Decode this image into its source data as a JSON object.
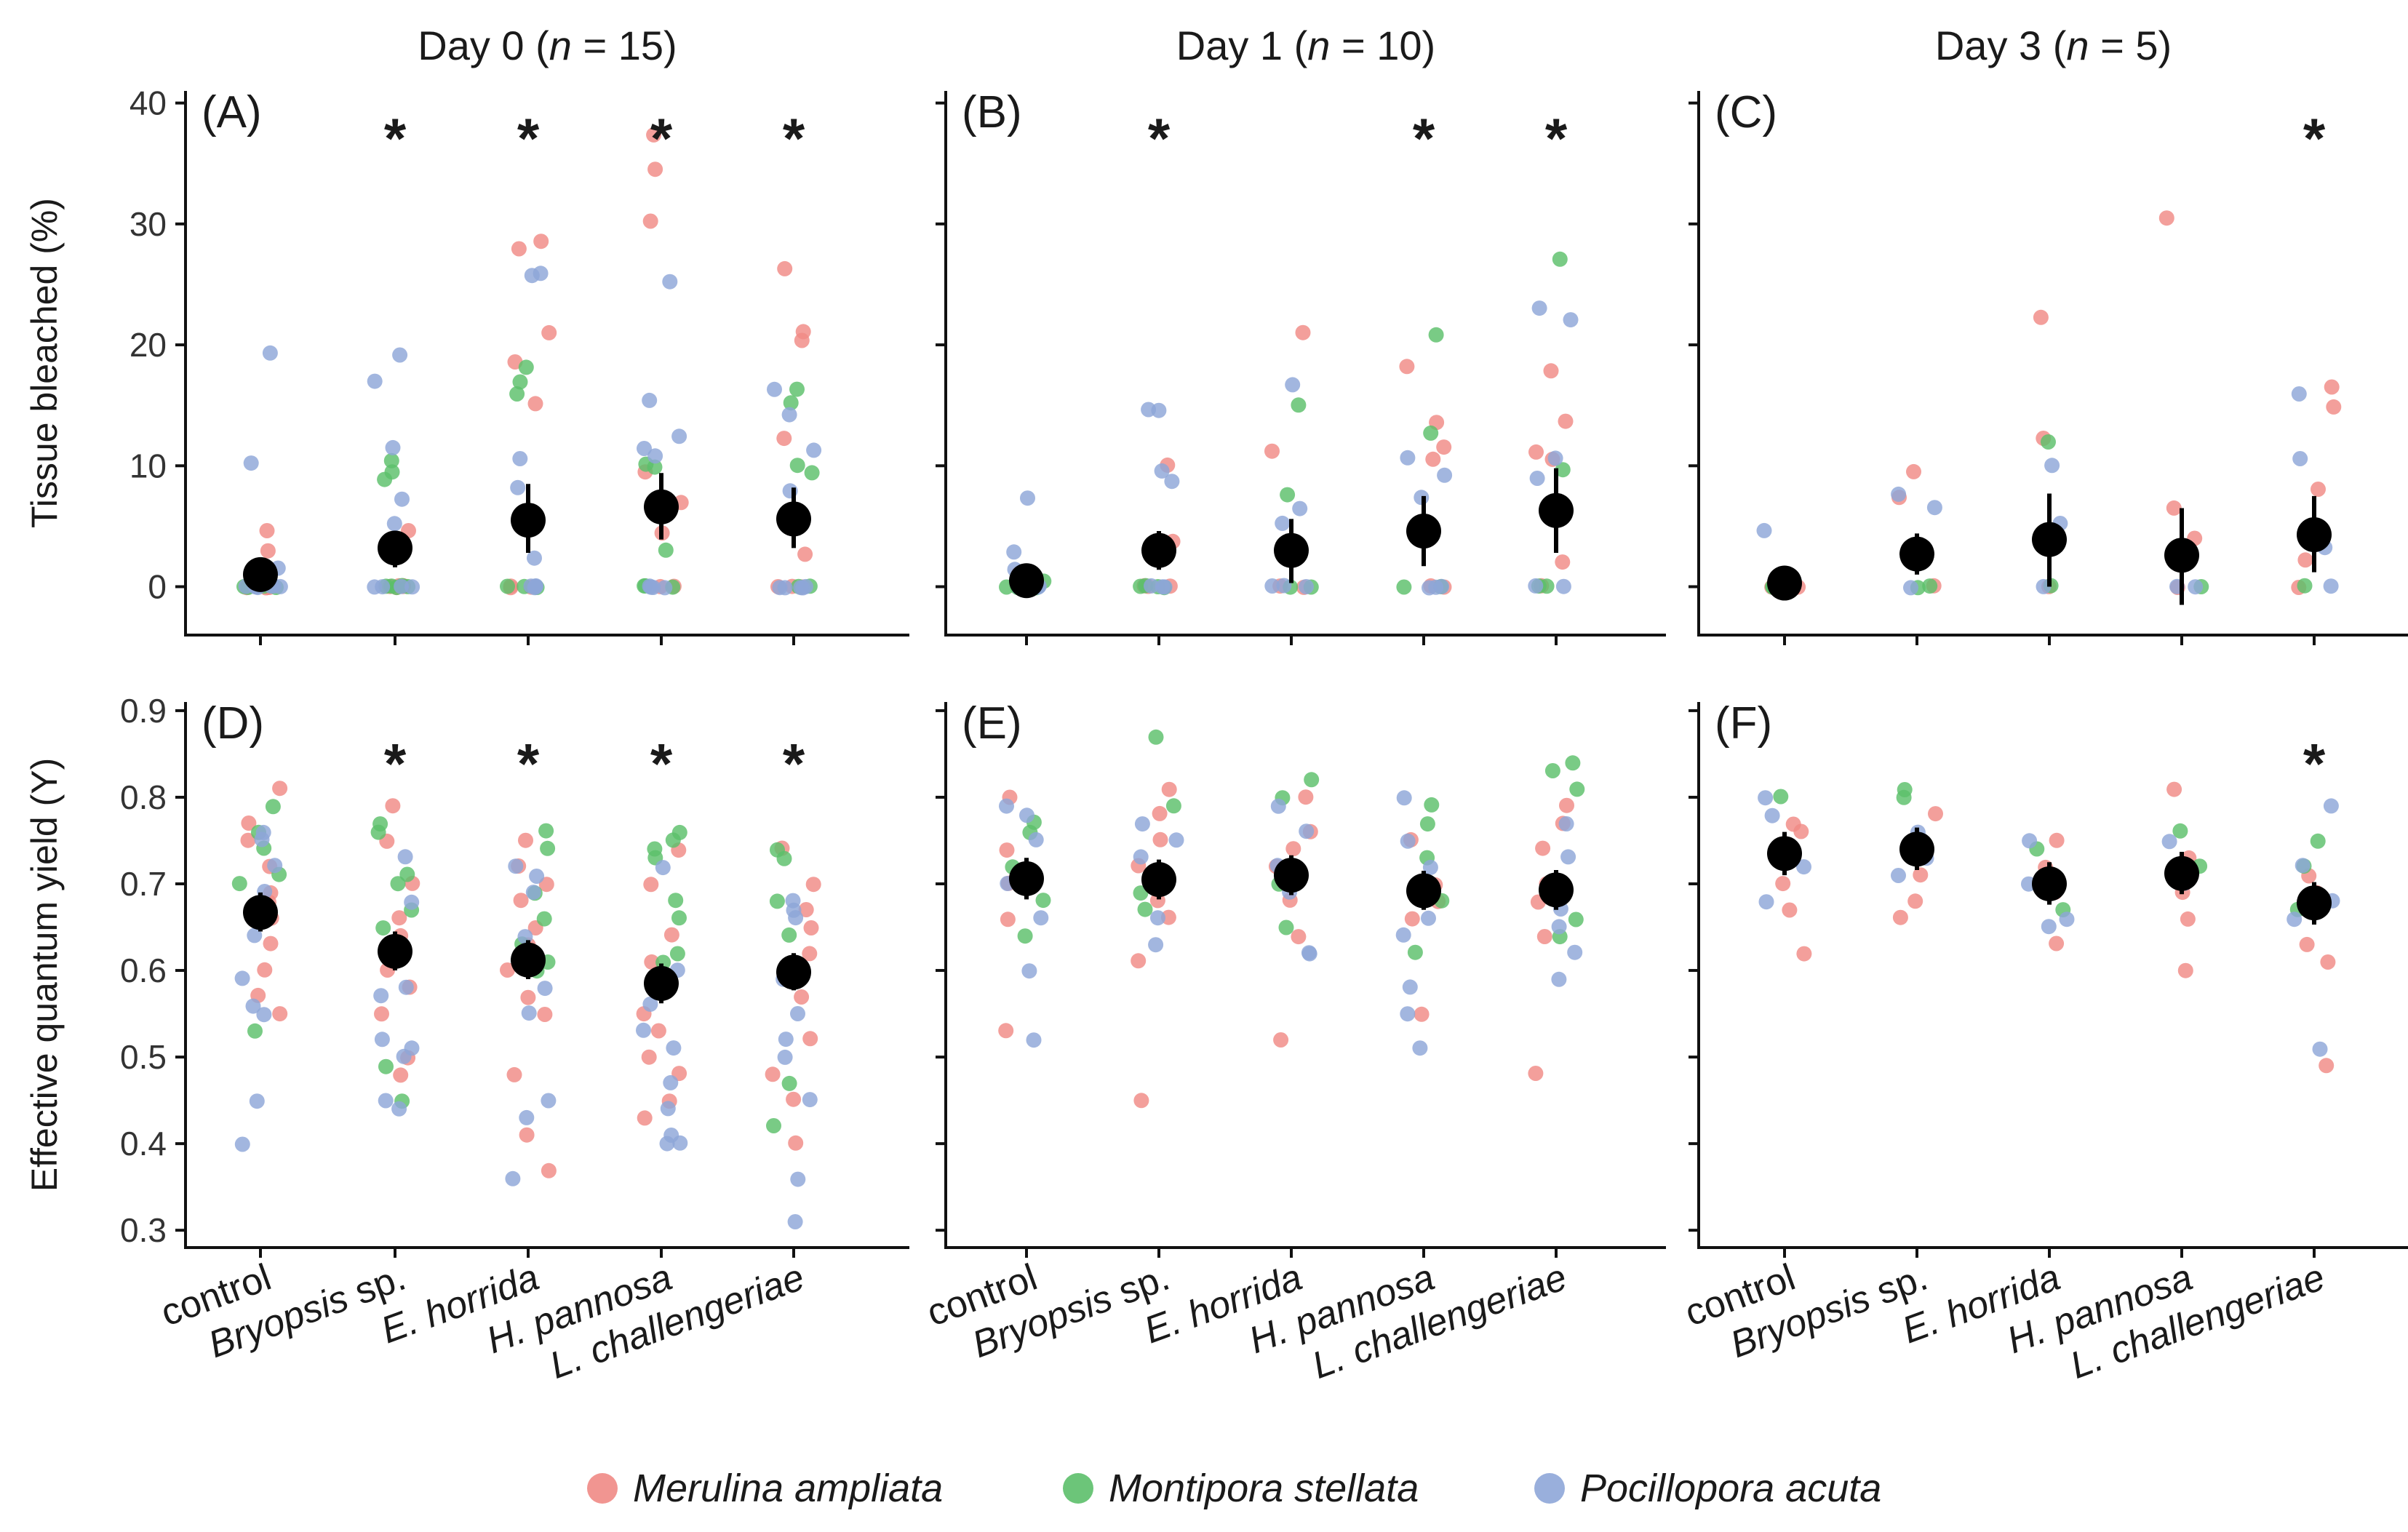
{
  "chart_data": {
    "type": "scatter",
    "description": "Jittered strip charts with mean ± CI for tissue bleaching and effective quantum yield across algae treatments",
    "categories": [
      "control",
      "Bryopsis sp.",
      "E. horrida",
      "H. pannosa",
      "L. challengeriae"
    ],
    "category_style": [
      "plain",
      "mixed",
      "italic",
      "italic",
      "italic"
    ],
    "species": [
      {
        "name": "Merulina ampliata",
        "color": "#f08a85"
      },
      {
        "name": "Montipora stellata",
        "color": "#5cbf6a"
      },
      {
        "name": "Pocillopora acuta",
        "color": "#8ea6d8"
      }
    ],
    "column_titles": [
      {
        "prefix": "Day 0 (",
        "n_label": "n",
        "suffix": " = 15)"
      },
      {
        "prefix": "Day 1 (",
        "n_label": "n",
        "suffix": " = 10)"
      },
      {
        "prefix": "Day 3 (",
        "n_label": "n",
        "suffix": " = 5)"
      }
    ],
    "rows": [
      {
        "ylabel": "Tissue bleached (%)",
        "ylim": [
          -4,
          41
        ],
        "yticks": [
          0,
          10,
          20,
          30,
          40
        ],
        "tick_format": "int",
        "star_y": 37.5
      },
      {
        "ylabel": "Effective quantum yield (Y)",
        "ylim": [
          0.28,
          0.91
        ],
        "yticks": [
          0.3,
          0.4,
          0.5,
          0.6,
          0.7,
          0.8,
          0.9
        ],
        "tick_format": "1dp",
        "star_y": 0.845
      }
    ],
    "panels": [
      {
        "tag": "(A)",
        "row": 0,
        "col": 0,
        "means": [
          1.0,
          3.2,
          5.5,
          6.6,
          5.6
        ],
        "ci_low": [
          -0.2,
          1.6,
          2.8,
          3.9,
          3.2
        ],
        "ci_high": [
          2.2,
          4.6,
          8.5,
          9.4,
          8.2
        ],
        "significant": [
          false,
          true,
          true,
          true,
          true
        ],
        "points": [
          [
            [
              4.6,
              0,
              3.0,
              0,
              0,
              0
            ],
            [
              0,
              0,
              0,
              0,
              0
            ],
            [
              19.3,
              10.2,
              1.6,
              0,
              0,
              0,
              0,
              0,
              0,
              0
            ]
          ],
          [
            [
              4.6,
              0,
              0,
              0,
              0,
              0,
              0
            ],
            [
              10.5,
              9.4,
              8.8,
              0,
              0,
              0,
              0,
              0
            ],
            [
              19.2,
              17.0,
              11.5,
              7.2,
              5.3,
              0,
              0,
              0,
              0
            ]
          ],
          [
            [
              28.6,
              28.0,
              21.0,
              18.6,
              15.2,
              0,
              0,
              0
            ],
            [
              18.2,
              17.0,
              16.0,
              0,
              0,
              0
            ],
            [
              26.0,
              25.8,
              10.5,
              8.2,
              2.4,
              0,
              0,
              0,
              0,
              0
            ]
          ],
          [
            [
              37.4,
              34.5,
              30.2,
              9.5,
              7.0,
              4.5,
              0,
              0
            ],
            [
              10.2,
              9.8,
              3.0,
              0,
              0,
              0
            ],
            [
              25.2,
              15.4,
              12.4,
              11.5,
              10.9,
              0,
              0,
              0,
              0
            ]
          ],
          [
            [
              26.3,
              21.1,
              20.4,
              12.2,
              2.6,
              0,
              0,
              0
            ],
            [
              16.3,
              15.2,
              10.0,
              9.5,
              0,
              0
            ],
            [
              16.3,
              14.3,
              11.2,
              7.9,
              0,
              0,
              0,
              0,
              0
            ]
          ]
        ]
      },
      {
        "tag": "(B)",
        "row": 0,
        "col": 1,
        "means": [
          0.5,
          3.0,
          3.0,
          4.6,
          6.3
        ],
        "ci_low": [
          -0.2,
          1.4,
          0.3,
          1.7,
          2.8
        ],
        "ci_high": [
          1.2,
          4.6,
          5.6,
          7.5,
          9.8
        ],
        "significant": [
          false,
          true,
          false,
          true,
          true
        ],
        "points": [
          [
            [
              1.1,
              0,
              0
            ],
            [
              0.5,
              0,
              0,
              0
            ],
            [
              7.4,
              2.8,
              1.5,
              0,
              0,
              0
            ]
          ],
          [
            [
              10.0,
              3.8,
              0,
              0,
              0
            ],
            [
              0,
              0,
              0,
              0
            ],
            [
              14.7,
              14.6,
              9.5,
              8.7,
              0,
              0,
              0
            ]
          ],
          [
            [
              21.0,
              11.3,
              0,
              0
            ],
            [
              15.1,
              7.6,
              0,
              0
            ],
            [
              16.7,
              6.5,
              5.2,
              0,
              0,
              0
            ]
          ],
          [
            [
              18.3,
              13.6,
              11.6,
              10.6,
              0,
              0
            ],
            [
              20.8,
              12.7,
              0,
              0
            ],
            [
              10.6,
              9.2,
              7.3,
              0,
              0,
              0
            ]
          ],
          [
            [
              17.8,
              13.6,
              11.2,
              10.6,
              2.0,
              0
            ],
            [
              27.1,
              9.6,
              0,
              0
            ],
            [
              23.0,
              22.0,
              10.7,
              9.0,
              0,
              0
            ]
          ]
        ]
      },
      {
        "tag": "(C)",
        "row": 0,
        "col": 2,
        "means": [
          0.3,
          2.7,
          3.9,
          2.6,
          4.3
        ],
        "ci_low": [
          -0.2,
          1.0,
          0.0,
          -1.5,
          1.2
        ],
        "ci_high": [
          0.8,
          4.4,
          7.7,
          6.5,
          7.5
        ],
        "significant": [
          false,
          false,
          false,
          false,
          true
        ],
        "points": [
          [
            [
              0,
              0
            ],
            [
              0,
              0
            ],
            [
              4.6,
              0
            ]
          ],
          [
            [
              9.5,
              7.3,
              0
            ],
            [
              0,
              0
            ],
            [
              7.6,
              6.6,
              0
            ]
          ],
          [
            [
              22.2,
              12.3,
              0
            ],
            [
              12.0,
              0
            ],
            [
              10.1,
              5.3,
              0
            ]
          ],
          [
            [
              30.5,
              6.5,
              4.0,
              0
            ],
            [
              0
            ],
            [
              0,
              0
            ]
          ],
          [
            [
              16.6,
              14.8,
              8.1,
              2.2,
              0
            ],
            [
              0
            ],
            [
              16.0,
              10.5,
              3.2,
              0
            ]
          ]
        ]
      },
      {
        "tag": "(D)",
        "row": 1,
        "col": 0,
        "means": [
          0.667,
          0.622,
          0.612,
          0.585,
          0.598
        ],
        "ci_low": [
          0.645,
          0.6,
          0.59,
          0.562,
          0.577
        ],
        "ci_high": [
          0.69,
          0.645,
          0.635,
          0.608,
          0.62
        ],
        "significant": [
          false,
          true,
          true,
          true,
          true
        ],
        "points": [
          [
            [
              0.81,
              0.77,
              0.75,
              0.72,
              0.69,
              0.68,
              0.66,
              0.63,
              0.6,
              0.57,
              0.55
            ],
            [
              0.79,
              0.76,
              0.74,
              0.71,
              0.7,
              0.67,
              0.53
            ],
            [
              0.76,
              0.75,
              0.72,
              0.69,
              0.64,
              0.59,
              0.56,
              0.55,
              0.45,
              0.4
            ]
          ],
          [
            [
              0.79,
              0.75,
              0.7,
              0.66,
              0.64,
              0.62,
              0.6,
              0.58,
              0.55,
              0.5,
              0.48
            ],
            [
              0.77,
              0.76,
              0.71,
              0.7,
              0.67,
              0.65,
              0.49,
              0.45
            ],
            [
              0.73,
              0.68,
              0.58,
              0.57,
              0.52,
              0.51,
              0.5,
              0.45,
              0.44
            ]
          ],
          [
            [
              0.75,
              0.72,
              0.7,
              0.68,
              0.65,
              0.63,
              0.6,
              0.57,
              0.55,
              0.48,
              0.41,
              0.37
            ],
            [
              0.76,
              0.74,
              0.69,
              0.66,
              0.63,
              0.61,
              0.6
            ],
            [
              0.72,
              0.71,
              0.69,
              0.64,
              0.58,
              0.55,
              0.45,
              0.43,
              0.36
            ]
          ],
          [
            [
              0.74,
              0.7,
              0.64,
              0.61,
              0.58,
              0.55,
              0.53,
              0.5,
              0.48,
              0.45,
              0.43
            ],
            [
              0.76,
              0.75,
              0.74,
              0.73,
              0.68,
              0.66,
              0.62,
              0.61
            ],
            [
              0.72,
              0.6,
              0.56,
              0.53,
              0.51,
              0.47,
              0.44,
              0.41,
              0.4,
              0.4
            ]
          ],
          [
            [
              0.74,
              0.7,
              0.67,
              0.65,
              0.62,
              0.6,
              0.57,
              0.52,
              0.48,
              0.45,
              0.4
            ],
            [
              0.74,
              0.73,
              0.68,
              0.64,
              0.47,
              0.42
            ],
            [
              0.68,
              0.67,
              0.66,
              0.59,
              0.55,
              0.52,
              0.5,
              0.45,
              0.36,
              0.31
            ]
          ]
        ]
      },
      {
        "tag": "(E)",
        "row": 1,
        "col": 1,
        "means": [
          0.706,
          0.705,
          0.71,
          0.692,
          0.693
        ],
        "ci_low": [
          0.682,
          0.682,
          0.687,
          0.67,
          0.67
        ],
        "ci_high": [
          0.73,
          0.728,
          0.733,
          0.715,
          0.716
        ],
        "significant": [
          false,
          false,
          false,
          false,
          false
        ],
        "points": [
          [
            [
              0.8,
              0.74,
              0.7,
              0.66,
              0.53
            ],
            [
              0.77,
              0.76,
              0.72,
              0.68,
              0.64
            ],
            [
              0.79,
              0.78,
              0.75,
              0.7,
              0.66,
              0.6,
              0.52
            ]
          ],
          [
            [
              0.81,
              0.78,
              0.75,
              0.72,
              0.68,
              0.66,
              0.61,
              0.45
            ],
            [
              0.87,
              0.79,
              0.7,
              0.69,
              0.67
            ],
            [
              0.77,
              0.75,
              0.73,
              0.7,
              0.66,
              0.63
            ]
          ],
          [
            [
              0.8,
              0.76,
              0.74,
              0.72,
              0.68,
              0.64,
              0.52
            ],
            [
              0.82,
              0.8,
              0.7,
              0.65
            ],
            [
              0.79,
              0.76,
              0.72,
              0.69,
              0.62,
              0.62
            ]
          ],
          [
            [
              0.75,
              0.7,
              0.68,
              0.66,
              0.55
            ],
            [
              0.79,
              0.77,
              0.73,
              0.68,
              0.62
            ],
            [
              0.8,
              0.75,
              0.72,
              0.66,
              0.64,
              0.58,
              0.55,
              0.51
            ]
          ],
          [
            [
              0.79,
              0.77,
              0.74,
              0.7,
              0.68,
              0.64,
              0.48
            ],
            [
              0.84,
              0.83,
              0.81,
              0.66,
              0.64
            ],
            [
              0.77,
              0.73,
              0.7,
              0.67,
              0.65,
              0.62,
              0.59
            ]
          ]
        ]
      },
      {
        "tag": "(F)",
        "row": 1,
        "col": 2,
        "means": [
          0.735,
          0.74,
          0.7,
          0.712,
          0.678
        ],
        "ci_low": [
          0.71,
          0.716,
          0.676,
          0.688,
          0.653
        ],
        "ci_high": [
          0.76,
          0.765,
          0.725,
          0.737,
          0.702
        ],
        "significant": [
          false,
          false,
          false,
          false,
          true
        ],
        "points": [
          [
            [
              0.77,
              0.76,
              0.7,
              0.67,
              0.62
            ],
            [
              0.8,
              0.73
            ],
            [
              0.8,
              0.78,
              0.72,
              0.68
            ]
          ],
          [
            [
              0.78,
              0.75,
              0.71,
              0.68,
              0.66
            ],
            [
              0.81,
              0.8
            ],
            [
              0.76,
              0.75,
              0.73,
              0.71
            ]
          ],
          [
            [
              0.75,
              0.72,
              0.69,
              0.63
            ],
            [
              0.74,
              0.67
            ],
            [
              0.75,
              0.7,
              0.66,
              0.65
            ]
          ],
          [
            [
              0.81,
              0.73,
              0.69,
              0.66,
              0.6
            ],
            [
              0.76,
              0.72
            ],
            [
              0.75,
              0.7
            ]
          ],
          [
            [
              0.71,
              0.69,
              0.63,
              0.61,
              0.49
            ],
            [
              0.75,
              0.72,
              0.67
            ],
            [
              0.79,
              0.72,
              0.68,
              0.66,
              0.51
            ]
          ]
        ]
      }
    ]
  }
}
